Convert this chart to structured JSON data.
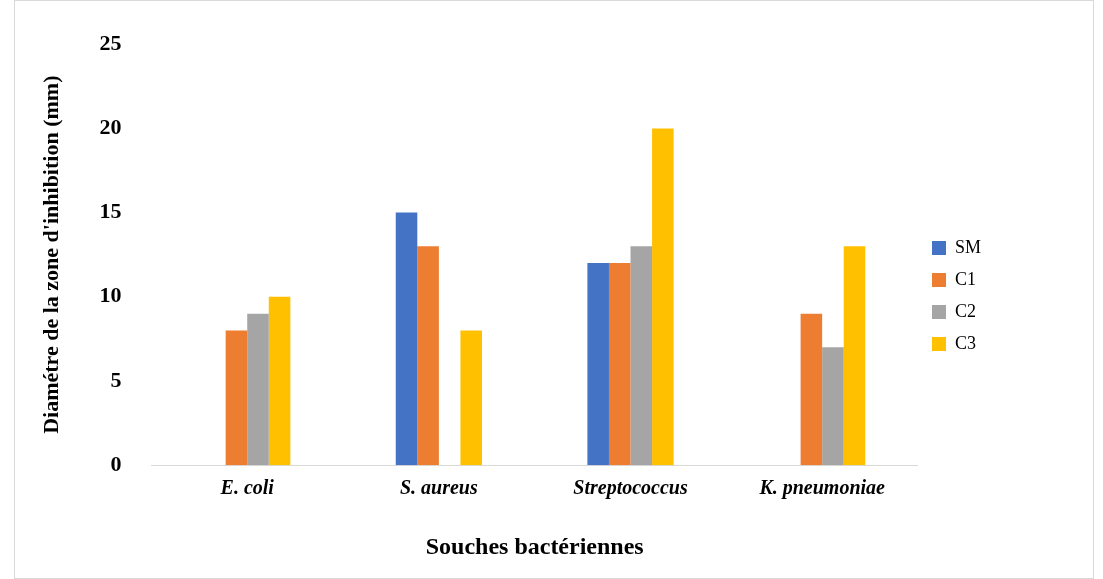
{
  "chart_data": {
    "type": "bar",
    "xlabel": "Souches bactériennes",
    "ylabel": "Diamétre de la zone d'inhibition (mm)",
    "categories": [
      "E. coli",
      "S. aureus",
      "Streptococcus",
      "K. pneumoniae"
    ],
    "series": [
      {
        "name": "SM",
        "color": "#4472c4",
        "values": [
          0,
          15,
          12,
          0
        ]
      },
      {
        "name": "C1",
        "color": "#ed7d31",
        "values": [
          8,
          13,
          12,
          9
        ]
      },
      {
        "name": "C2",
        "color": "#a5a5a5",
        "values": [
          9,
          0,
          13,
          7
        ]
      },
      {
        "name": "C3",
        "color": "#ffc000",
        "values": [
          10,
          8,
          20,
          13
        ]
      }
    ],
    "ylim": [
      0,
      25
    ],
    "yticks": [
      0,
      5,
      10,
      15,
      20,
      25
    ],
    "grid": false,
    "legend": "right"
  }
}
